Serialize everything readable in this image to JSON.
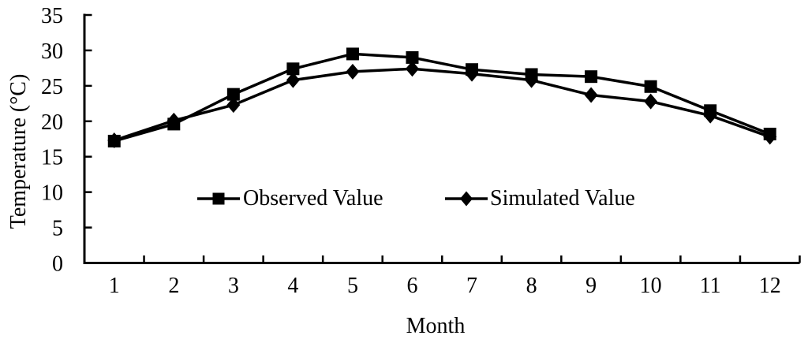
{
  "chart_data": {
    "type": "line",
    "title": "",
    "xlabel": "Month",
    "ylabel": "Temperature (°C)",
    "categories": [
      "1",
      "2",
      "3",
      "4",
      "5",
      "6",
      "7",
      "8",
      "9",
      "10",
      "11",
      "12"
    ],
    "y_ticks": [
      "0",
      "5",
      "10",
      "15",
      "20",
      "25",
      "30",
      "35"
    ],
    "ylim": [
      0,
      35
    ],
    "grid": false,
    "legend_position": "inside-center",
    "axis_color": "#000000",
    "background_color": "#ffffff",
    "series": [
      {
        "name": "Observed Value",
        "marker": "square",
        "color": "#000000",
        "values": [
          17.2,
          19.6,
          23.8,
          27.4,
          29.5,
          29.0,
          27.3,
          26.6,
          26.3,
          24.9,
          21.5,
          18.2
        ]
      },
      {
        "name": "Simulated Value",
        "marker": "diamond",
        "color": "#000000",
        "values": [
          17.3,
          20.1,
          22.3,
          25.8,
          27.0,
          27.4,
          26.7,
          25.8,
          23.7,
          22.8,
          20.8,
          17.8
        ]
      }
    ]
  }
}
